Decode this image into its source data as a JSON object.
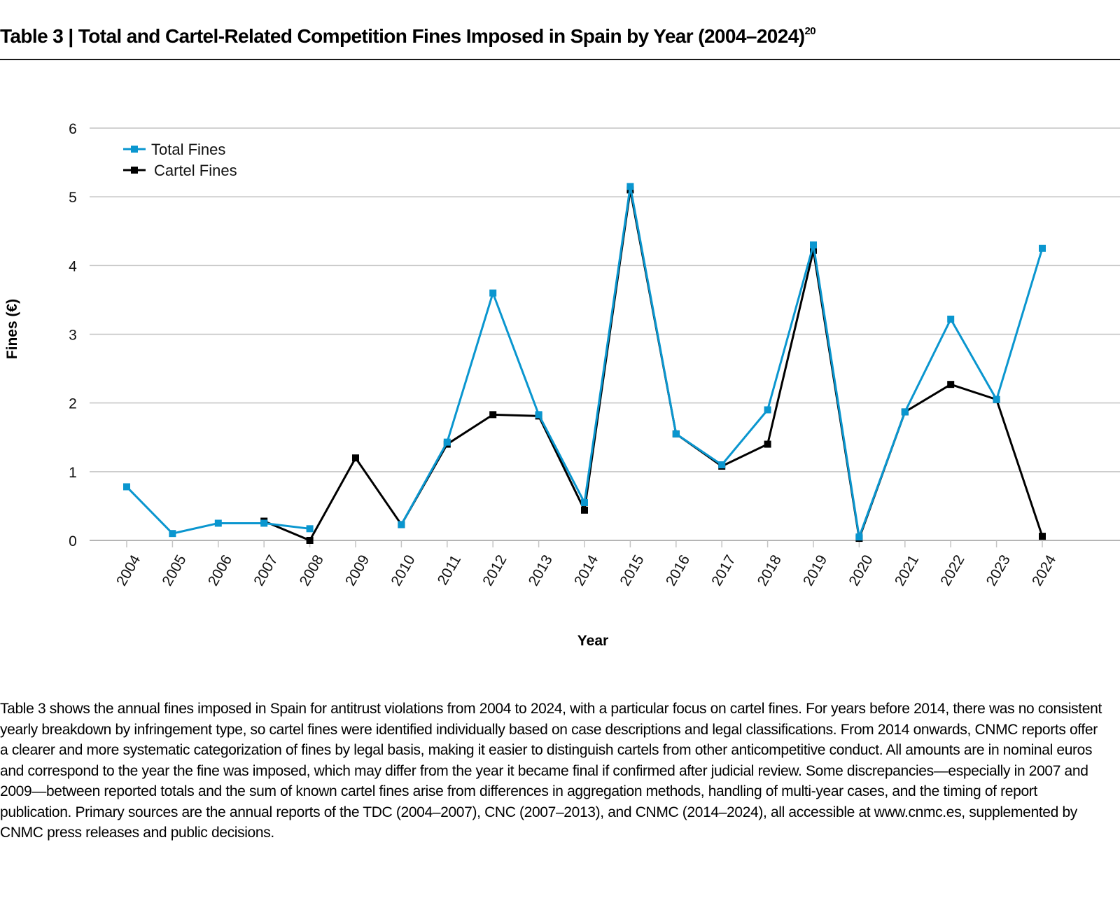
{
  "header": {
    "title": "Table 3 | Total and Cartel-Related Competition Fines Imposed in Spain by Year (2004–2024)",
    "footnote_ref": "20"
  },
  "caption": "Table 3 shows the annual fines imposed in Spain for antitrust violations from 2004 to 2024, with a particular focus on cartel fines. For years before 2014, there was no consistent yearly breakdown by infringement type, so cartel fines were identified individually based on case descriptions and legal classifications. From 2014 onwards, CNMC reports offer a clearer and more systematic categorization of fines by legal basis, making it easier to distinguish cartels from other anticompetitive conduct. All amounts are in nominal euros and correspond to the year the fine was imposed, which may differ from the year it became final if confirmed after judicial review. Some discrepancies—especially in 2007 and 2009—between reported totals and the sum of known cartel fines arise from differences in aggregation methods, handling of multi-year cases, and the timing of report publication. Primary sources are the annual reports of the TDC (2004–2007), CNC (2007–2013), and CNMC (2014–2024), all accessible at www.cnmc.es, supplemented by CNMC press releases and public decisions.",
  "chart_data": {
    "type": "line",
    "title": "Total and Cartel-Related Competition Fines Imposed in Spain by Year (2004–2024)",
    "xlabel": "Year",
    "ylabel": "Fines (€)",
    "ylim": [
      0,
      6
    ],
    "yticks": [
      "0",
      "1",
      "2",
      "3",
      "4",
      "5",
      "6"
    ],
    "grid": true,
    "legend_position": "top-left",
    "categories": [
      "2004",
      "2005",
      "2006",
      "2007",
      "2008",
      "2009",
      "2010",
      "2011",
      "2012",
      "2013",
      "2014",
      "2015",
      "2016",
      "2017",
      "2018",
      "2019",
      "2020",
      "2021",
      "2022",
      "2023",
      "2024"
    ],
    "series": [
      {
        "name": "Total Fines",
        "color": "#0a96cf",
        "values": [
          0.78,
          0.1,
          0.25,
          0.25,
          0.17,
          null,
          0.23,
          1.43,
          3.6,
          1.83,
          0.55,
          5.15,
          1.55,
          1.1,
          1.9,
          4.3,
          0.05,
          1.87,
          3.22,
          2.05,
          4.25
        ]
      },
      {
        "name": "Cartel Fines",
        "color": "#000000",
        "values": [
          null,
          null,
          null,
          0.28,
          0.0,
          1.2,
          0.23,
          1.4,
          1.83,
          1.81,
          0.44,
          5.1,
          1.55,
          1.08,
          1.4,
          4.22,
          0.03,
          1.87,
          2.27,
          2.05,
          0.06
        ]
      }
    ]
  }
}
